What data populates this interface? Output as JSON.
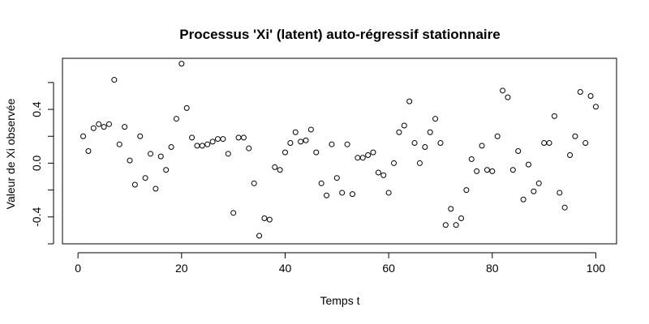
{
  "chart_data": {
    "type": "scatter",
    "title": "Processus 'Xi' (latent) auto-régressif stationnaire",
    "xlabel": "Temps t",
    "ylabel": "Valeur de Xi observée",
    "xlim": [
      -3,
      104
    ],
    "ylim": [
      -0.6,
      0.78
    ],
    "x_ticks": [
      0,
      20,
      40,
      60,
      80,
      100
    ],
    "y_ticks": [
      -0.4,
      0.0,
      0.4
    ],
    "y_tick_labels": [
      "-0.4",
      "0.0",
      "0.4"
    ],
    "grid": false,
    "legend": "none",
    "marker": "open-circle",
    "x": [
      1,
      2,
      3,
      4,
      5,
      6,
      7,
      8,
      9,
      10,
      11,
      12,
      13,
      14,
      15,
      16,
      17,
      18,
      19,
      20,
      21,
      22,
      23,
      24,
      25,
      26,
      27,
      28,
      29,
      30,
      31,
      32,
      33,
      34,
      35,
      36,
      37,
      38,
      39,
      40,
      41,
      42,
      43,
      44,
      45,
      46,
      47,
      48,
      49,
      50,
      51,
      52,
      53,
      54,
      55,
      56,
      57,
      58,
      59,
      60,
      61,
      62,
      63,
      64,
      65,
      66,
      67,
      68,
      69,
      70,
      71,
      72,
      73,
      74,
      75,
      76,
      77,
      78,
      79,
      80,
      81,
      82,
      83,
      84,
      85,
      86,
      87,
      88,
      89,
      90,
      91,
      92,
      93,
      94,
      95,
      96,
      97,
      98,
      99,
      100
    ],
    "y": [
      0.2,
      0.09,
      0.26,
      0.29,
      0.27,
      0.29,
      0.62,
      0.14,
      0.27,
      0.02,
      -0.16,
      0.2,
      -0.11,
      0.07,
      -0.19,
      0.05,
      -0.05,
      0.12,
      0.33,
      0.74,
      0.41,
      0.19,
      0.13,
      0.13,
      0.14,
      0.16,
      0.18,
      0.18,
      0.07,
      -0.37,
      0.19,
      0.19,
      0.11,
      -0.15,
      -0.54,
      -0.41,
      -0.42,
      -0.03,
      -0.05,
      0.08,
      0.15,
      0.23,
      0.16,
      0.17,
      0.25,
      0.08,
      -0.15,
      -0.24,
      0.14,
      -0.11,
      -0.22,
      0.14,
      -0.23,
      0.04,
      0.04,
      0.06,
      0.08,
      -0.07,
      -0.09,
      -0.22,
      0.0,
      0.23,
      0.28,
      0.46,
      0.15,
      0.0,
      0.12,
      0.23,
      0.33,
      0.15,
      -0.46,
      -0.34,
      -0.46,
      -0.41,
      -0.2,
      0.03,
      -0.06,
      0.13,
      -0.05,
      -0.06,
      0.2,
      0.54,
      0.49,
      -0.05,
      0.09,
      -0.27,
      -0.01,
      -0.21,
      -0.15,
      0.15,
      0.15,
      0.35,
      -0.22,
      -0.33,
      0.06,
      0.2,
      0.53,
      0.15,
      0.5,
      0.42
    ]
  }
}
